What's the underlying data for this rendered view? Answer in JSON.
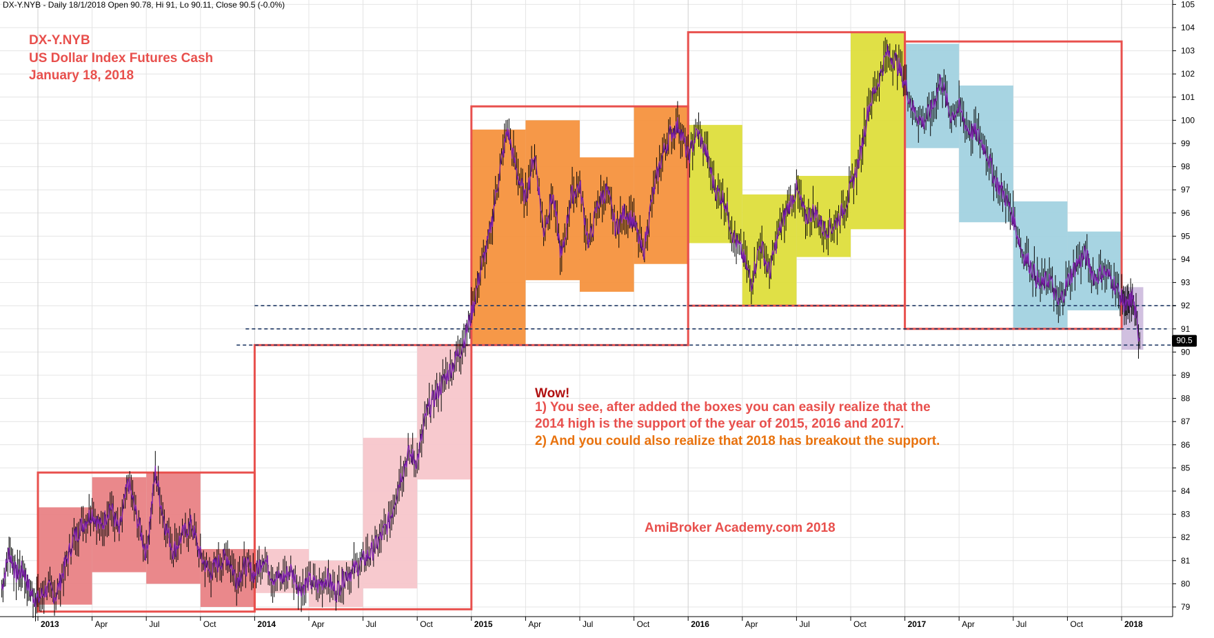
{
  "header": {
    "text": "DX-Y.NYB - Daily 18/1/2018 Open 90.78, Hi 91, Lo 90.11, Close 90.5 (-0.0%)"
  },
  "title_block": {
    "line1": "DX-Y.NYB",
    "line2": "US Dollar Index Futures Cash",
    "line3": "January 18, 2018"
  },
  "annotation": {
    "wow": "Wow!",
    "point1_a": "1) You see, after added the boxes you can easily realize that the",
    "point1_b": "2014 high is the support of the year of 2015, 2016 and 2017.",
    "point2": "2) And you could also realize that 2018 has breakout the support.",
    "watermark": "AmiBroker Academy.com  2018"
  },
  "colors": {
    "title": "#e8504d",
    "wow": "#b01010",
    "point1": "#e8504d",
    "point2": "#e8720e",
    "watermark": "#e8504d",
    "year_box": "#e8504d",
    "box_2013": "#e98285",
    "box_2014": "#f7c6cb",
    "box_2015": "#f5923e",
    "box_2016": "#dede3c",
    "box_2017": "#a2d2e0",
    "box_2018": "#c6b0d8",
    "price_line": "#000000",
    "price_trend": "#7a1fa8",
    "support_line": "#1f3864"
  },
  "chart_data": {
    "type": "line",
    "title": "DX-Y.NYB",
    "ylabel": "",
    "xlabel": "",
    "ylim": [
      78.5,
      105
    ],
    "y_ticks": [
      79,
      80,
      81,
      82,
      83,
      84,
      85,
      86,
      87,
      88,
      89,
      90,
      91,
      92,
      93,
      94,
      95,
      96,
      97,
      98,
      99,
      100,
      101,
      102,
      103,
      104,
      105
    ],
    "x_axis": {
      "start": "2013-01",
      "ticks": [
        {
          "label": "2013",
          "t": 0,
          "bold": true
        },
        {
          "label": "Apr",
          "t": 3,
          "bold": false
        },
        {
          "label": "Jul",
          "t": 6,
          "bold": false
        },
        {
          "label": "Oct",
          "t": 9,
          "bold": false
        },
        {
          "label": "2014",
          "t": 12,
          "bold": true
        },
        {
          "label": "Apr",
          "t": 15,
          "bold": false
        },
        {
          "label": "Jul",
          "t": 18,
          "bold": false
        },
        {
          "label": "Oct",
          "t": 21,
          "bold": false
        },
        {
          "label": "2015",
          "t": 24,
          "bold": true
        },
        {
          "label": "Apr",
          "t": 27,
          "bold": false
        },
        {
          "label": "Jul",
          "t": 30,
          "bold": false
        },
        {
          "label": "Oct",
          "t": 33,
          "bold": false
        },
        {
          "label": "2016",
          "t": 36,
          "bold": true
        },
        {
          "label": "Apr",
          "t": 39,
          "bold": false
        },
        {
          "label": "Jul",
          "t": 42,
          "bold": false
        },
        {
          "label": "Oct",
          "t": 45,
          "bold": false
        },
        {
          "label": "2017",
          "t": 48,
          "bold": true
        },
        {
          "label": "Apr",
          "t": 51,
          "bold": false
        },
        {
          "label": "Jul",
          "t": 54,
          "bold": false
        },
        {
          "label": "Oct",
          "t": 57,
          "bold": false
        },
        {
          "label": "2018",
          "t": 60,
          "bold": true
        }
      ]
    },
    "series": [
      {
        "values": [
          [
            -2,
            79.8
          ],
          [
            -1.6,
            81.4
          ],
          [
            -1.2,
            80.4
          ],
          [
            -0.8,
            80.6
          ],
          [
            -0.4,
            79.6
          ],
          [
            0,
            79.3
          ],
          [
            0.5,
            79.8
          ],
          [
            1,
            79.5
          ],
          [
            1.5,
            80.8
          ],
          [
            2,
            82.0
          ],
          [
            2.5,
            82.6
          ],
          [
            3,
            83.1
          ],
          [
            3.5,
            82.4
          ],
          [
            4,
            83.4
          ],
          [
            4.5,
            82.2
          ],
          [
            5,
            84.4
          ],
          [
            5.5,
            82.8
          ],
          [
            6,
            81.3
          ],
          [
            6.5,
            84.8
          ],
          [
            7,
            82.7
          ],
          [
            7.5,
            81.4
          ],
          [
            8,
            82.1
          ],
          [
            8.5,
            82.6
          ],
          [
            9,
            81.2
          ],
          [
            9.5,
            80.5
          ],
          [
            10,
            80.9
          ],
          [
            10.5,
            81.2
          ],
          [
            11,
            80.2
          ],
          [
            11.5,
            80.8
          ],
          [
            12,
            80.4
          ],
          [
            12.5,
            81.2
          ],
          [
            13,
            80.3
          ],
          [
            13.5,
            80.2
          ],
          [
            14,
            80.6
          ],
          [
            14.5,
            79.8
          ],
          [
            15,
            80.1
          ],
          [
            15.5,
            79.9
          ],
          [
            16,
            80.3
          ],
          [
            16.5,
            79.6
          ],
          [
            17,
            80.4
          ],
          [
            17.5,
            80.6
          ],
          [
            18,
            81.0
          ],
          [
            18.5,
            81.4
          ],
          [
            19,
            82.0
          ],
          [
            19.5,
            82.8
          ],
          [
            20,
            84.4
          ],
          [
            20.5,
            85.6
          ],
          [
            21,
            85.3
          ],
          [
            21.5,
            87.3
          ],
          [
            22,
            88.1
          ],
          [
            22.5,
            88.8
          ],
          [
            23,
            89.5
          ],
          [
            23.5,
            90.3
          ],
          [
            24,
            91.6
          ],
          [
            24.5,
            93.5
          ],
          [
            25,
            95.0
          ],
          [
            25.5,
            97.5
          ],
          [
            26,
            99.6
          ],
          [
            26.5,
            97.8
          ],
          [
            27,
            96.6
          ],
          [
            27.5,
            98.6
          ],
          [
            28,
            95.2
          ],
          [
            28.5,
            96.8
          ],
          [
            29,
            94.0
          ],
          [
            29.5,
            96.7
          ],
          [
            30,
            97.2
          ],
          [
            30.5,
            94.6
          ],
          [
            31,
            96.4
          ],
          [
            31.5,
            97.0
          ],
          [
            32,
            95.3
          ],
          [
            32.5,
            96.1
          ],
          [
            33,
            95.6
          ],
          [
            33.5,
            94.2
          ],
          [
            34,
            96.6
          ],
          [
            34.5,
            98.3
          ],
          [
            35,
            99.4
          ],
          [
            35.5,
            99.8
          ],
          [
            36,
            98.4
          ],
          [
            36.5,
            99.5
          ],
          [
            37,
            98.6
          ],
          [
            37.5,
            97.0
          ],
          [
            38,
            96.6
          ],
          [
            38.5,
            95.0
          ],
          [
            39,
            94.2
          ],
          [
            39.5,
            93.0
          ],
          [
            40,
            94.7
          ],
          [
            40.5,
            93.4
          ],
          [
            41,
            95.1
          ],
          [
            41.5,
            96.2
          ],
          [
            42,
            97.0
          ],
          [
            42.5,
            95.8
          ],
          [
            43,
            96.1
          ],
          [
            43.5,
            95.3
          ],
          [
            44,
            95.4
          ],
          [
            44.5,
            96.0
          ],
          [
            45,
            97.0
          ],
          [
            45.5,
            98.4
          ],
          [
            46,
            100.6
          ],
          [
            46.5,
            101.6
          ],
          [
            47,
            102.9
          ],
          [
            47.5,
            102.6
          ],
          [
            48,
            101.6
          ],
          [
            48.5,
            100.4
          ],
          [
            49,
            99.9
          ],
          [
            49.5,
            100.5
          ],
          [
            50,
            101.8
          ],
          [
            50.5,
            100.2
          ],
          [
            51,
            100.5
          ],
          [
            51.5,
            99.6
          ],
          [
            52,
            99.4
          ],
          [
            52.5,
            98.7
          ],
          [
            53,
            97.4
          ],
          [
            53.5,
            96.8
          ],
          [
            54,
            95.8
          ],
          [
            54.5,
            94.3
          ],
          [
            55,
            93.7
          ],
          [
            55.5,
            92.8
          ],
          [
            56,
            93.2
          ],
          [
            56.5,
            92.0
          ],
          [
            57,
            93.0
          ],
          [
            57.5,
            93.8
          ],
          [
            58,
            94.2
          ],
          [
            58.5,
            93.2
          ],
          [
            59,
            93.5
          ],
          [
            59.5,
            93.1
          ],
          [
            60,
            92.3
          ],
          [
            60.3,
            91.9
          ],
          [
            60.6,
            92.4
          ],
          [
            61,
            90.5
          ]
        ]
      }
    ],
    "year_boxes": [
      {
        "label": "2013",
        "t0": 0,
        "t1": 12,
        "low": 78.8,
        "high": 84.8
      },
      {
        "label": "2014",
        "t0": 12,
        "t1": 24,
        "low": 78.9,
        "high": 90.3
      },
      {
        "label": "2015",
        "t0": 24,
        "t1": 36,
        "low": 90.3,
        "high": 100.6
      },
      {
        "label": "2016",
        "t0": 36,
        "t1": 48,
        "low": 92.0,
        "high": 103.8
      },
      {
        "label": "2017",
        "t0": 48,
        "t1": 60,
        "low": 91.0,
        "high": 103.4
      }
    ],
    "quarter_boxes": [
      {
        "year": "2013",
        "t0": 0,
        "t1": 3,
        "low": 79.1,
        "high": 83.3
      },
      {
        "year": "2013",
        "t0": 3,
        "t1": 6,
        "low": 80.5,
        "high": 84.6
      },
      {
        "year": "2013",
        "t0": 6,
        "t1": 9,
        "low": 80.0,
        "high": 84.8
      },
      {
        "year": "2013",
        "t0": 9,
        "t1": 12,
        "low": 79.0,
        "high": 81.5
      },
      {
        "year": "2014",
        "t0": 12,
        "t1": 15,
        "low": 79.6,
        "high": 81.5
      },
      {
        "year": "2014",
        "t0": 15,
        "t1": 18,
        "low": 79.0,
        "high": 81.0
      },
      {
        "year": "2014",
        "t0": 18,
        "t1": 21,
        "low": 79.8,
        "high": 86.3
      },
      {
        "year": "2014",
        "t0": 21,
        "t1": 24,
        "low": 84.5,
        "high": 90.3
      },
      {
        "year": "2015",
        "t0": 24,
        "t1": 27,
        "low": 90.3,
        "high": 99.6
      },
      {
        "year": "2015",
        "t0": 27,
        "t1": 30,
        "low": 93.1,
        "high": 100.0
      },
      {
        "year": "2015",
        "t0": 30,
        "t1": 33,
        "low": 92.6,
        "high": 98.4
      },
      {
        "year": "2015",
        "t0": 33,
        "t1": 36,
        "low": 93.8,
        "high": 100.6
      },
      {
        "year": "2016",
        "t0": 36,
        "t1": 39,
        "low": 94.7,
        "high": 99.8
      },
      {
        "year": "2016",
        "t0": 39,
        "t1": 42,
        "low": 92.0,
        "high": 96.8
      },
      {
        "year": "2016",
        "t0": 42,
        "t1": 45,
        "low": 94.1,
        "high": 97.6
      },
      {
        "year": "2016",
        "t0": 45,
        "t1": 48,
        "low": 95.3,
        "high": 103.8
      },
      {
        "year": "2017",
        "t0": 48,
        "t1": 51,
        "low": 98.8,
        "high": 103.3
      },
      {
        "year": "2017",
        "t0": 51,
        "t1": 54,
        "low": 95.6,
        "high": 101.5
      },
      {
        "year": "2017",
        "t0": 54,
        "t1": 57,
        "low": 91.0,
        "high": 96.5
      },
      {
        "year": "2017",
        "t0": 57,
        "t1": 60,
        "low": 91.8,
        "high": 95.2
      },
      {
        "year": "2018",
        "t0": 60,
        "t1": 61.2,
        "low": 90.1,
        "high": 92.8
      }
    ],
    "support_lines": [
      {
        "y": 92.0,
        "t0": 12,
        "t1": 63
      },
      {
        "y": 91.0,
        "t0": 11.5,
        "t1": 62.5
      },
      {
        "y": 90.3,
        "t0": 11,
        "t1": 63
      }
    ],
    "last_price_label": "90.5",
    "last_price": 90.5
  }
}
